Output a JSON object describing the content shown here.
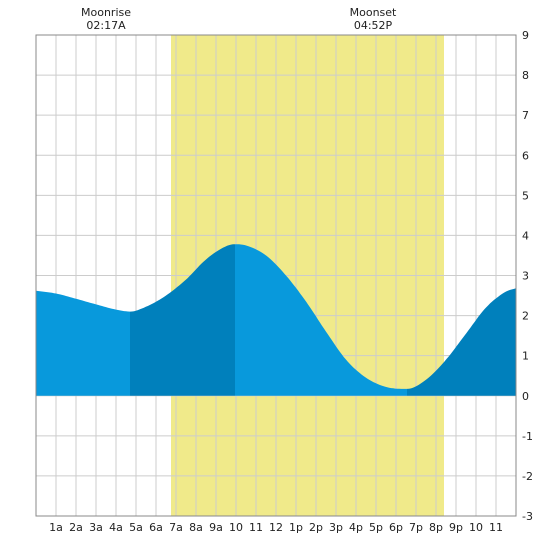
{
  "chart_data": {
    "type": "area",
    "title": "",
    "xlabel": "",
    "ylabel": "",
    "xlim": [
      0,
      24
    ],
    "ylim": [
      -3,
      9
    ],
    "grid": true,
    "x_ticks": [
      {
        "x": 1,
        "label": "1a"
      },
      {
        "x": 2,
        "label": "2a"
      },
      {
        "x": 3,
        "label": "3a"
      },
      {
        "x": 4,
        "label": "4a"
      },
      {
        "x": 5,
        "label": "5a"
      },
      {
        "x": 6,
        "label": "6a"
      },
      {
        "x": 7,
        "label": "7a"
      },
      {
        "x": 8,
        "label": "8a"
      },
      {
        "x": 9,
        "label": "9a"
      },
      {
        "x": 10,
        "label": "10"
      },
      {
        "x": 11,
        "label": "11"
      },
      {
        "x": 12,
        "label": "12"
      },
      {
        "x": 13,
        "label": "1p"
      },
      {
        "x": 14,
        "label": "2p"
      },
      {
        "x": 15,
        "label": "3p"
      },
      {
        "x": 16,
        "label": "4p"
      },
      {
        "x": 17,
        "label": "5p"
      },
      {
        "x": 18,
        "label": "6p"
      },
      {
        "x": 19,
        "label": "7p"
      },
      {
        "x": 20,
        "label": "8p"
      },
      {
        "x": 21,
        "label": "9p"
      },
      {
        "x": 22,
        "label": "10"
      },
      {
        "x": 23,
        "label": "11"
      }
    ],
    "y_ticks": [
      -3,
      -2,
      -1,
      0,
      1,
      2,
      3,
      4,
      5,
      6,
      7,
      8,
      9
    ],
    "daylight": {
      "start": 6.75,
      "end": 20.4,
      "color": "#f0ea8a"
    },
    "colors": {
      "tide_light": "#0899dc",
      "tide_dark": "#0080bc",
      "grid": "#cccccc",
      "frame": "#888888"
    },
    "extremes": [
      {
        "time": 4.7,
        "value": 2.1,
        "kind": "low"
      },
      {
        "time": 9.95,
        "value": 3.8,
        "kind": "high"
      },
      {
        "time": 18.55,
        "value": 0.17,
        "kind": "low"
      }
    ],
    "series": [
      {
        "values": [
          [
            0,
            2.62
          ],
          [
            1,
            2.55
          ],
          [
            2,
            2.42
          ],
          [
            3,
            2.28
          ],
          [
            4,
            2.15
          ],
          [
            4.7,
            2.1
          ],
          [
            5.5,
            2.22
          ],
          [
            6.5,
            2.5
          ],
          [
            7.5,
            2.9
          ],
          [
            8.5,
            3.4
          ],
          [
            9.5,
            3.73
          ],
          [
            9.95,
            3.78
          ],
          [
            10.5,
            3.75
          ],
          [
            11.5,
            3.5
          ],
          [
            12.5,
            3.0
          ],
          [
            13.5,
            2.35
          ],
          [
            14.5,
            1.6
          ],
          [
            15.5,
            0.9
          ],
          [
            16.5,
            0.45
          ],
          [
            17.5,
            0.22
          ],
          [
            18.55,
            0.17
          ],
          [
            19.5,
            0.4
          ],
          [
            20.5,
            0.9
          ],
          [
            21.5,
            1.55
          ],
          [
            22.5,
            2.2
          ],
          [
            23.5,
            2.6
          ],
          [
            24,
            2.68
          ]
        ]
      }
    ],
    "annotations": [
      {
        "x": 3.5,
        "title": "Moonrise",
        "time": "02:17A"
      },
      {
        "x": 16.85,
        "title": "Moonset",
        "time": "04:52P"
      }
    ]
  }
}
